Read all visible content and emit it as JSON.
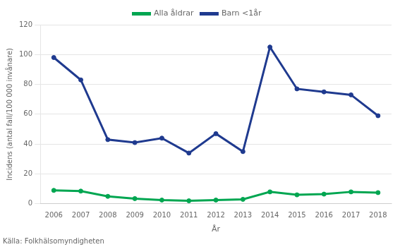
{
  "chart_data": {
    "type": "line",
    "xlabel": "År",
    "ylabel": "Incidens (antal fall/100 000 invånare)",
    "annotations": [
      "Källa: Folkhälsomyndigheten"
    ],
    "x": [
      2006,
      2007,
      2008,
      2009,
      2010,
      2011,
      2012,
      2013,
      2014,
      2015,
      2016,
      2017,
      2018
    ],
    "series": [
      {
        "name": "Alla åldrar",
        "color": "#00a651",
        "values": [
          9,
          8.5,
          5,
          3.5,
          2.5,
          2,
          2.5,
          3,
          8,
          6,
          6.5,
          8,
          7.5
        ]
      },
      {
        "name": "Barn <1år",
        "color": "#1f3a8f",
        "values": [
          98,
          83,
          43,
          41,
          44,
          34,
          47,
          35,
          105,
          77,
          75,
          73,
          59
        ]
      }
    ],
    "xlim": [
      2005.5,
      2018.5
    ],
    "xticks": [
      2006,
      2007,
      2008,
      2009,
      2010,
      2011,
      2012,
      2013,
      2014,
      2015,
      2016,
      2017,
      2018
    ],
    "ylim": [
      0,
      120
    ],
    "yticks": [
      0,
      20,
      40,
      60,
      80,
      100,
      120
    ],
    "grid": "y",
    "legend": "top"
  }
}
